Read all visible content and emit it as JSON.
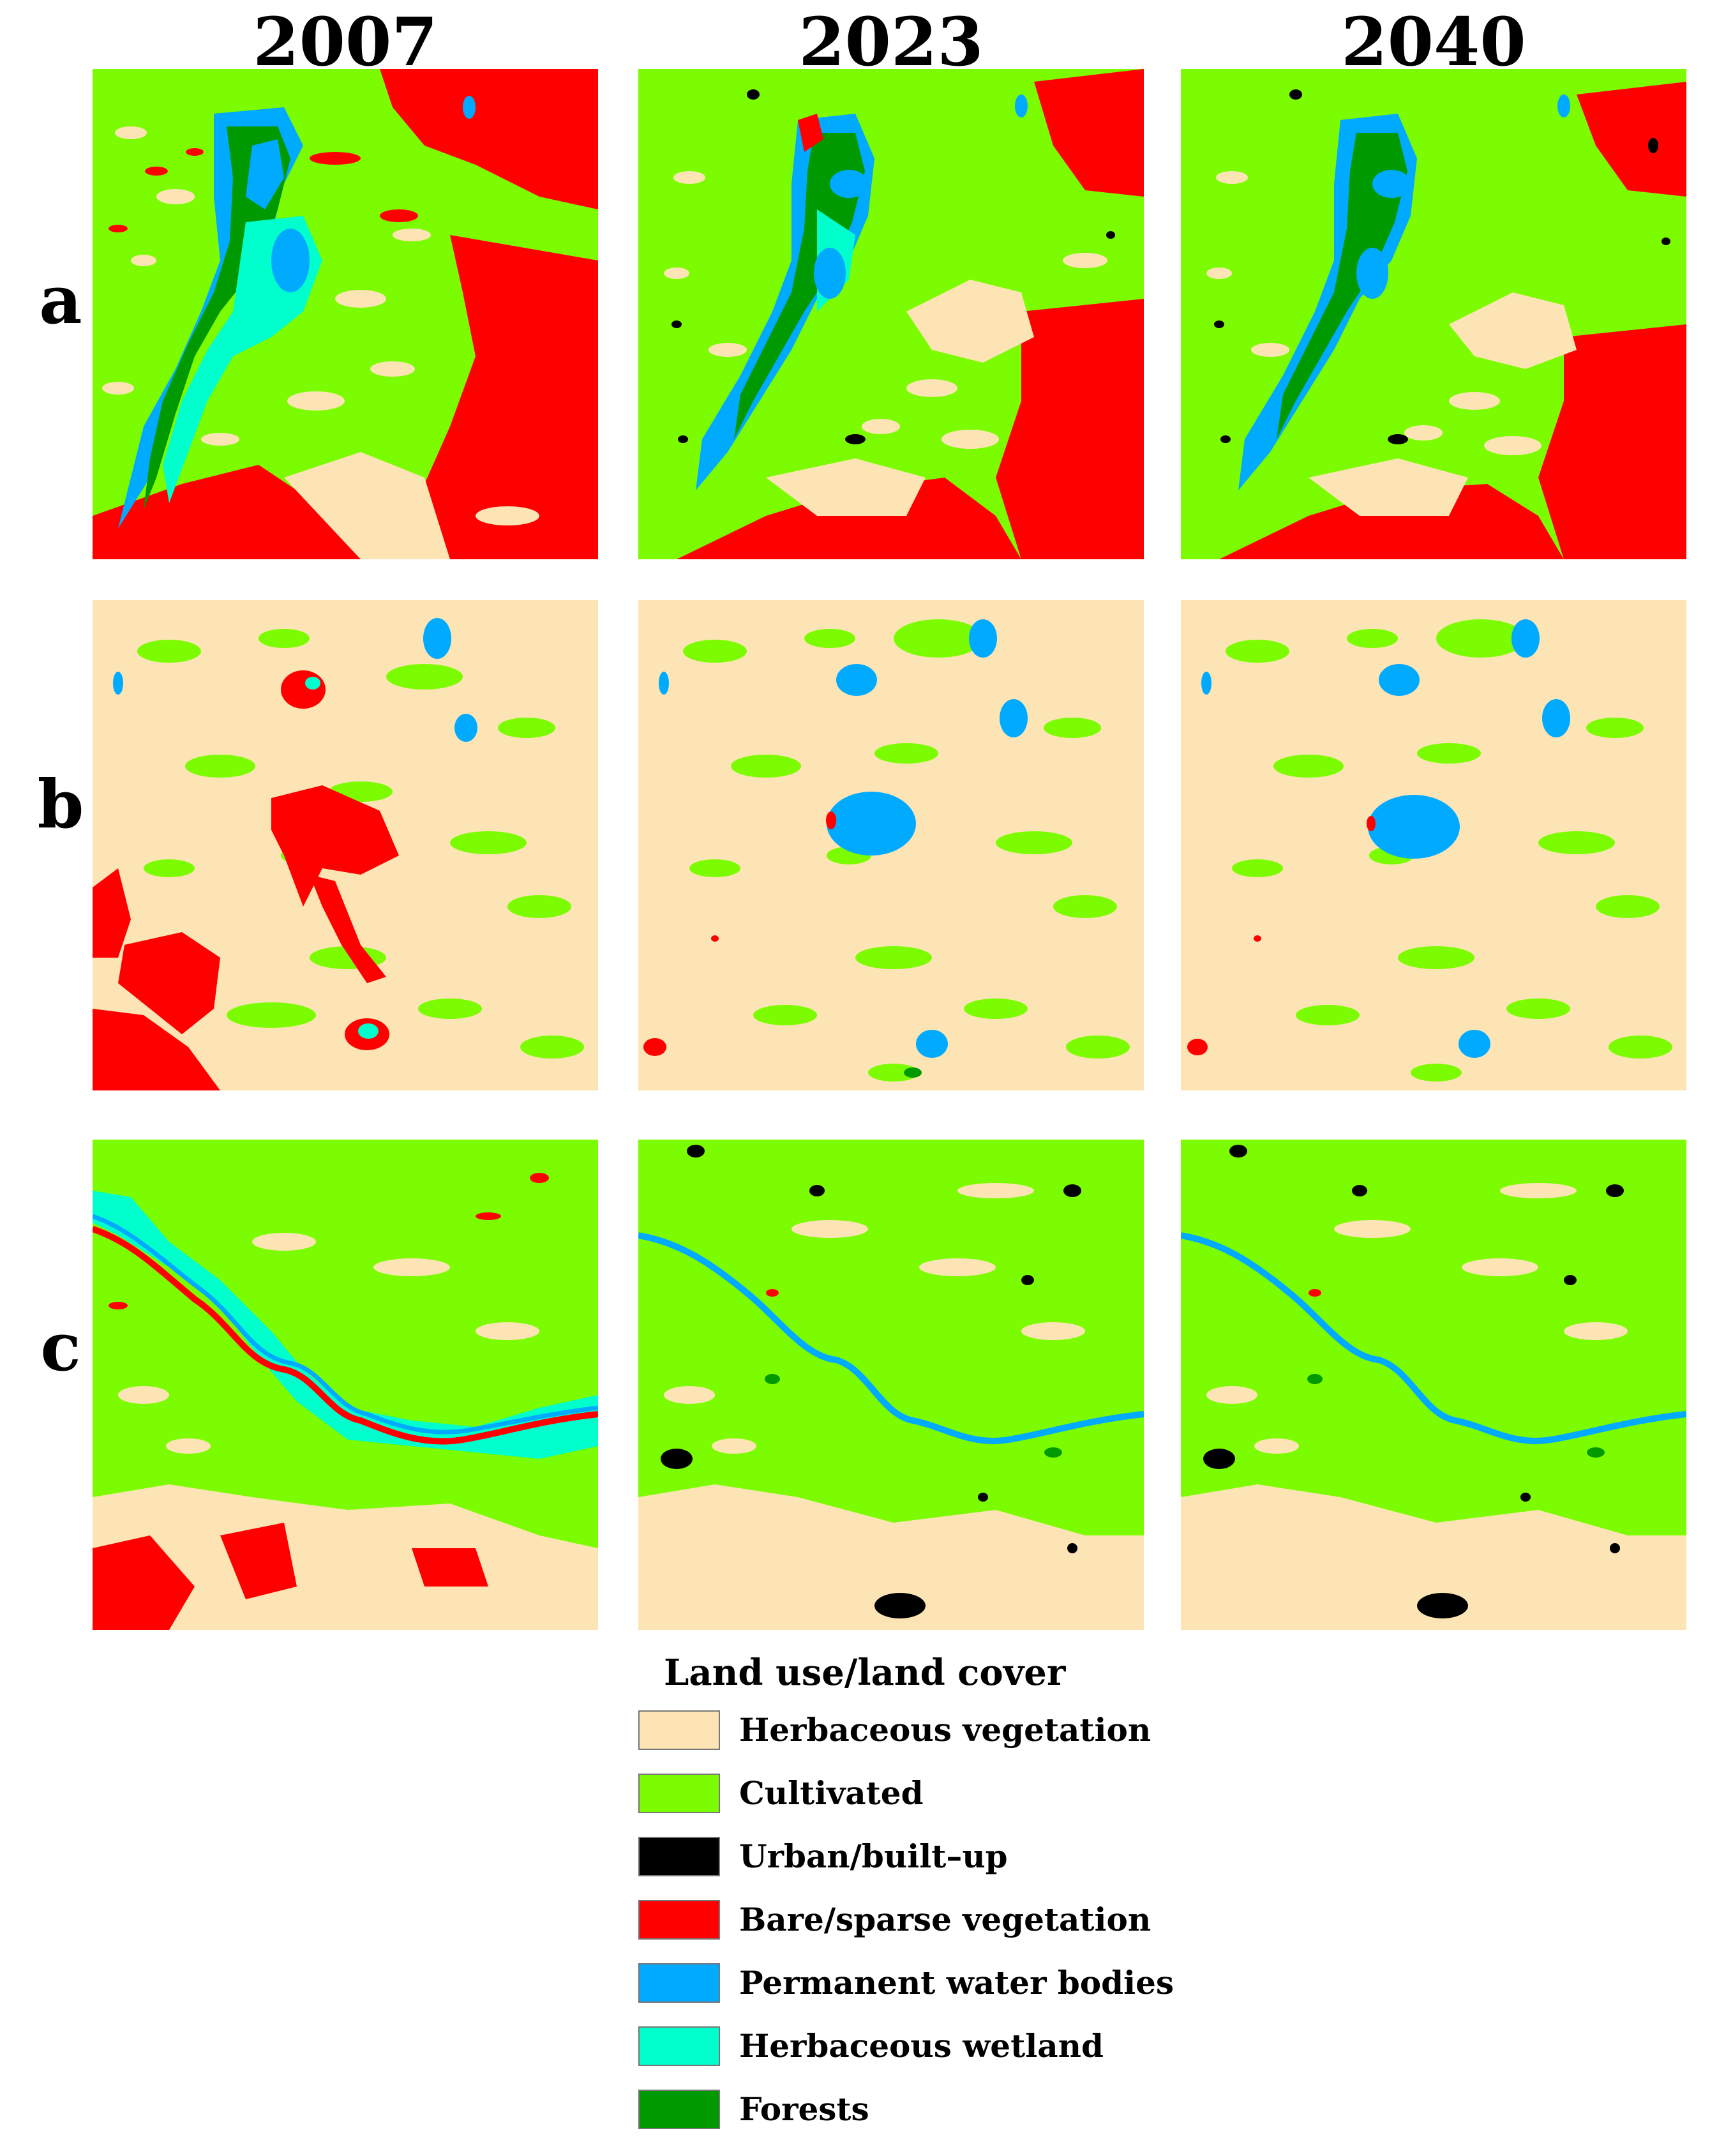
{
  "columns": [
    "2007",
    "2023",
    "2040"
  ],
  "rows": [
    "a",
    "b",
    "c"
  ],
  "legend": {
    "title": "Land use/land cover",
    "items": [
      {
        "label": "Herbaceous vegetation",
        "color": "#fce4b4"
      },
      {
        "label": "Cultivated",
        "color": "#7cfc00"
      },
      {
        "label": "Urban/built–up",
        "color": "#000000"
      },
      {
        "label": "Bare/sparse vegetation",
        "color": "#ff0000"
      },
      {
        "label": "Permanent water bodies",
        "color": "#00aaff"
      },
      {
        "label": "Herbaceous wetland",
        "color": "#00ffcc"
      },
      {
        "label": "Forests",
        "color": "#009900"
      }
    ]
  },
  "maps": [
    {
      "row": "a",
      "year": "2007",
      "dominant": "Cultivated"
    },
    {
      "row": "a",
      "year": "2023",
      "dominant": "Cultivated"
    },
    {
      "row": "a",
      "year": "2040",
      "dominant": "Cultivated"
    },
    {
      "row": "b",
      "year": "2007",
      "dominant": "Herbaceous vegetation"
    },
    {
      "row": "b",
      "year": "2023",
      "dominant": "Herbaceous vegetation"
    },
    {
      "row": "b",
      "year": "2040",
      "dominant": "Herbaceous vegetation"
    },
    {
      "row": "c",
      "year": "2007",
      "dominant": "Cultivated"
    },
    {
      "row": "c",
      "year": "2023",
      "dominant": "Cultivated"
    },
    {
      "row": "c",
      "year": "2040",
      "dominant": "Cultivated"
    }
  ]
}
